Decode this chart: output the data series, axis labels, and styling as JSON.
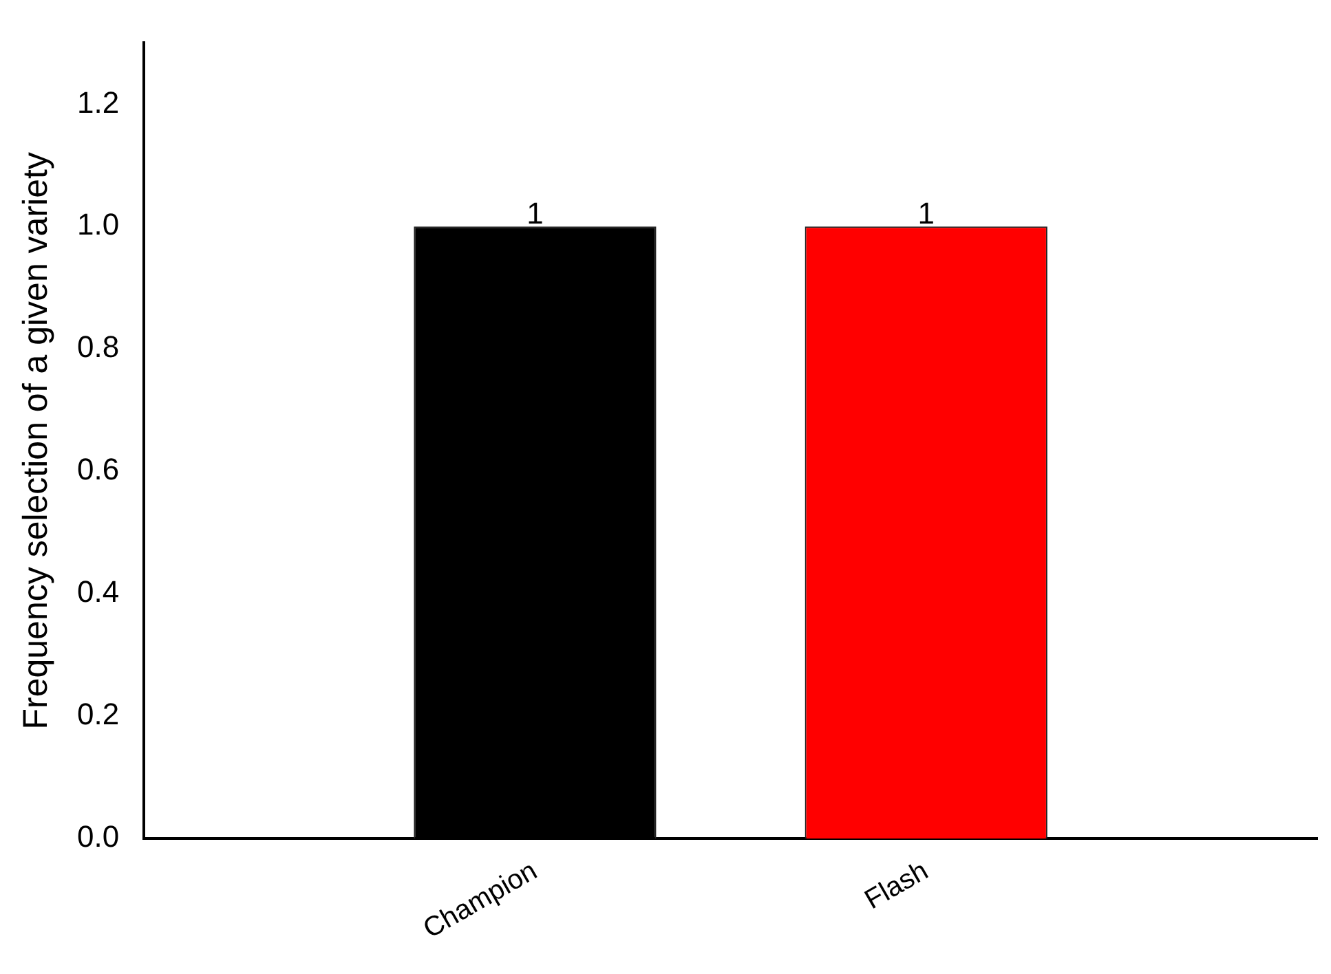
{
  "chart_data": {
    "type": "bar",
    "ylabel": "Frequency selection of a given variety",
    "categories": [
      "Champion",
      "Flash"
    ],
    "values": [
      1,
      1
    ],
    "colors": [
      "#000000",
      "#ff0000"
    ],
    "ylim": [
      0,
      1.3
    ],
    "yticks": [
      {
        "value": 0,
        "label": "0.0"
      },
      0.2,
      0.4,
      0.6,
      0.8,
      {
        "value": 1,
        "label": "1.0"
      },
      1.2
    ],
    "data_labels": true,
    "grid": false,
    "legend": false
  }
}
